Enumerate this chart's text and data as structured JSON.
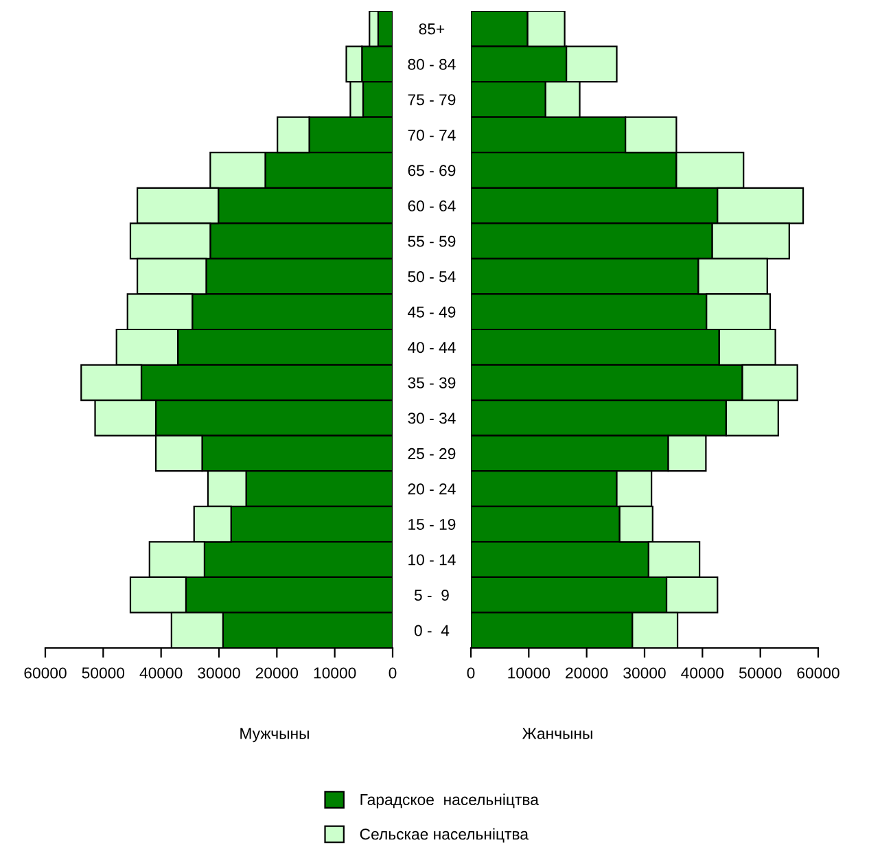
{
  "chart_data": [
    {
      "type": "bar",
      "orientation": "horizontal",
      "stacked": true,
      "xlabel": "Мужчыны",
      "categories": [
        "85+",
        "80 - 84",
        "75 - 79",
        "70 - 74",
        "65 - 69",
        "60 - 64",
        "55 - 59",
        "50 - 54",
        "45 - 49",
        "40 - 44",
        "35 - 39",
        "30 - 34",
        "25 - 29",
        "20 - 24",
        "15 - 19",
        "10 - 14",
        "5 -  9",
        "0 -  4"
      ],
      "xlim": [
        60000,
        0
      ],
      "xticks": [
        60000,
        50000,
        40000,
        30000,
        20000,
        10000,
        0
      ],
      "series": [
        {
          "name": "Гарадское  насельніцтва",
          "color": "#008000",
          "values": [
            2500,
            5300,
            5100,
            14400,
            22000,
            30100,
            31500,
            32200,
            34600,
            37100,
            43400,
            40900,
            32900,
            25300,
            27900,
            32500,
            35700,
            29300
          ]
        },
        {
          "name": "Сельскае насельніцтва",
          "color": "#ccffcc",
          "values": [
            1500,
            2700,
            2200,
            5500,
            9500,
            14000,
            13800,
            11900,
            11200,
            10600,
            10400,
            10500,
            8000,
            6600,
            6400,
            9500,
            9600,
            8900
          ]
        }
      ],
      "legend": "bottom"
    },
    {
      "type": "bar",
      "orientation": "horizontal",
      "stacked": true,
      "xlabel": "Жанчыны",
      "categories": [
        "85+",
        "80 - 84",
        "75 - 79",
        "70 - 74",
        "65 - 69",
        "60 - 64",
        "55 - 59",
        "50 - 54",
        "45 - 49",
        "40 - 44",
        "35 - 39",
        "30 - 34",
        "25 - 29",
        "20 - 24",
        "15 - 19",
        "10 - 14",
        "5 -  9",
        "0 -  4"
      ],
      "xlim": [
        0,
        60000
      ],
      "xticks": [
        0,
        10000,
        20000,
        30000,
        40000,
        50000,
        60000
      ],
      "series": [
        {
          "color": "#008000",
          "values": [
            9800,
            16500,
            12900,
            26700,
            35500,
            42600,
            41700,
            39300,
            40700,
            42900,
            46900,
            44100,
            34100,
            25200,
            25700,
            30700,
            33800,
            27900
          ]
        },
        {
          "color": "#ccffcc",
          "values": [
            6400,
            8700,
            5900,
            8800,
            11600,
            14800,
            13300,
            11900,
            11000,
            9700,
            9500,
            9000,
            6500,
            6000,
            5700,
            8800,
            8800,
            7800
          ]
        }
      ],
      "tick_labels": "x"
    }
  ]
}
